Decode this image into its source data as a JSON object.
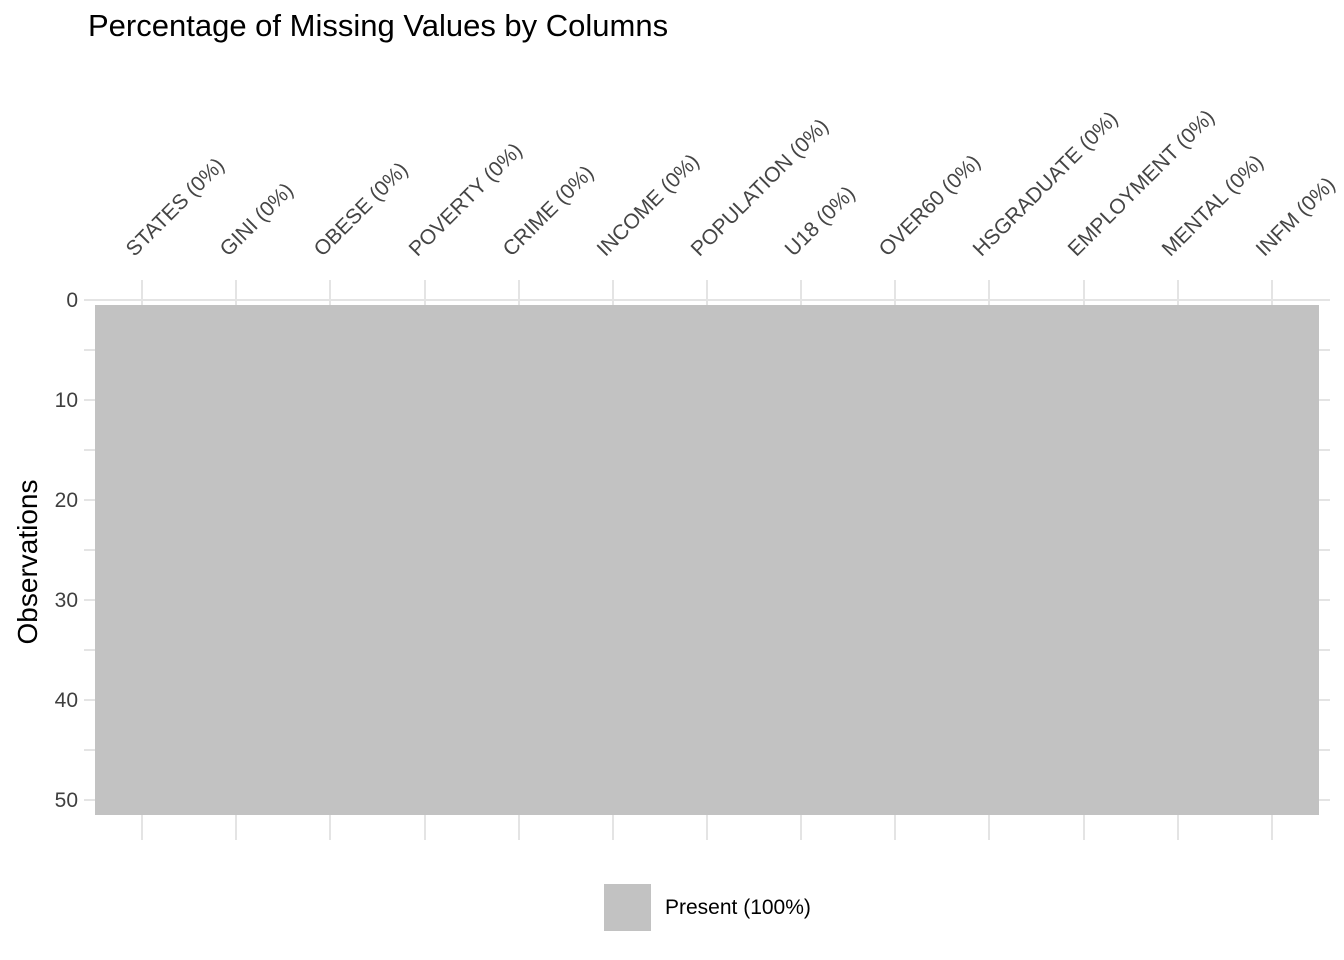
{
  "title": "Percentage of Missing Values by Columns",
  "chart_data": {
    "type": "heatmap",
    "title": "Percentage of Missing Values by Columns",
    "xlabel": "",
    "ylabel": "Observations",
    "columns": [
      {
        "name": "STATES",
        "label": "STATES (0%)",
        "missing_pct": 0
      },
      {
        "name": "GINI",
        "label": "GINI (0%)",
        "missing_pct": 0
      },
      {
        "name": "OBESE",
        "label": "OBESE (0%)",
        "missing_pct": 0
      },
      {
        "name": "POVERTY",
        "label": "POVERTY (0%)",
        "missing_pct": 0
      },
      {
        "name": "CRIME",
        "label": "CRIME (0%)",
        "missing_pct": 0
      },
      {
        "name": "INCOME",
        "label": "INCOME (0%)",
        "missing_pct": 0
      },
      {
        "name": "POPULATION",
        "label": "POPULATION (0%)",
        "missing_pct": 0
      },
      {
        "name": "U18",
        "label": "U18 (0%)",
        "missing_pct": 0
      },
      {
        "name": "OVER60",
        "label": "OVER60 (0%)",
        "missing_pct": 0
      },
      {
        "name": "HSGRADUATE",
        "label": "HSGRADUATE (0%)",
        "missing_pct": 0
      },
      {
        "name": "EMPLOYMENT",
        "label": "EMPLOYMENT (0%)",
        "missing_pct": 0
      },
      {
        "name": "MENTAL",
        "label": "MENTAL (0%)",
        "missing_pct": 0
      },
      {
        "name": "INFM",
        "label": "INFM (0%)",
        "missing_pct": 0
      }
    ],
    "n_observations": 51,
    "y_ticks_major": [
      0,
      10,
      20,
      30,
      40,
      50
    ],
    "y_ticks_minor": [
      5,
      15,
      25,
      35,
      45
    ],
    "ylim": [
      0,
      52
    ],
    "grid": true,
    "legend_position": "bottom",
    "legend": [
      {
        "label": "Present (100%)",
        "value_pct": 100,
        "color": "#c2c2c2"
      }
    ],
    "colors": {
      "present": "#c2c2c2",
      "grid": "#e4e4e4",
      "axis_text": "#454545",
      "title_text": "#000000"
    }
  }
}
